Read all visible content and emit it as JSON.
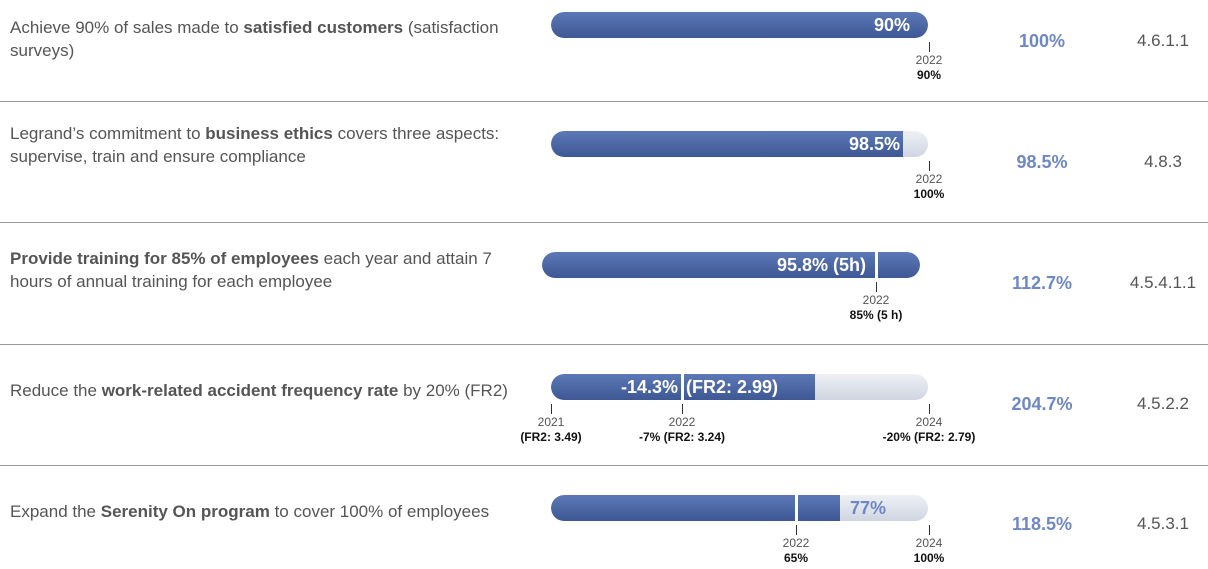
{
  "rows": [
    {
      "description": [
        {
          "text": "Achieve 90% of sales made to ",
          "bold": false
        },
        {
          "text": "satisfied customers",
          "bold": true
        },
        {
          "text": " (satisfaction surveys)",
          "bold": false
        }
      ],
      "bar_labels": [
        "90%"
      ],
      "markers": [
        {
          "year": "2022",
          "label": "90%"
        }
      ],
      "achievement": "100%",
      "reference": "4.6.1.1"
    },
    {
      "description": [
        {
          "text": "Legrand’s commitment to ",
          "bold": false
        },
        {
          "text": "business ethics",
          "bold": true
        },
        {
          "text": " covers three aspects: supervise, train and ensure compliance",
          "bold": false
        }
      ],
      "bar_labels": [
        "98.5%"
      ],
      "markers": [
        {
          "year": "2022",
          "label": "100%"
        }
      ],
      "achievement": "98.5%",
      "reference": "4.8.3"
    },
    {
      "description": [
        {
          "text": "Provide training for 85% of employees",
          "bold": true
        },
        {
          "text": " each year and attain 7 hours of annual training for each employee",
          "bold": false
        }
      ],
      "bar_labels": [
        "95.8% (5h)"
      ],
      "markers": [
        {
          "year": "2022",
          "label": "85% (5 h)"
        }
      ],
      "achievement": "112.7%",
      "reference": "4.5.4.1.1"
    },
    {
      "description": [
        {
          "text": "Reduce the ",
          "bold": false
        },
        {
          "text": "work-related accident frequency rate",
          "bold": true
        },
        {
          "text": " by 20% (FR2)",
          "bold": false
        }
      ],
      "bar_labels": [
        "-14.3%",
        "(FR2: 2.99)"
      ],
      "markers": [
        {
          "year": "2021",
          "label": "(FR2: 3.49)"
        },
        {
          "year": "2022",
          "label": "-7% (FR2: 3.24)"
        },
        {
          "year": "2024",
          "label": "-20% (FR2: 2.79)"
        }
      ],
      "achievement": "204.7%",
      "reference": "4.5.2.2"
    },
    {
      "description": [
        {
          "text": "Expand the ",
          "bold": false
        },
        {
          "text": "Serenity On program",
          "bold": true
        },
        {
          "text": " to cover 100% of employees",
          "bold": false
        }
      ],
      "bar_labels": [
        "77%"
      ],
      "markers": [
        {
          "year": "2022",
          "label": "65%"
        },
        {
          "year": "2024",
          "label": "100%"
        }
      ],
      "achievement": "118.5%",
      "reference": "4.5.3.1"
    }
  ]
}
